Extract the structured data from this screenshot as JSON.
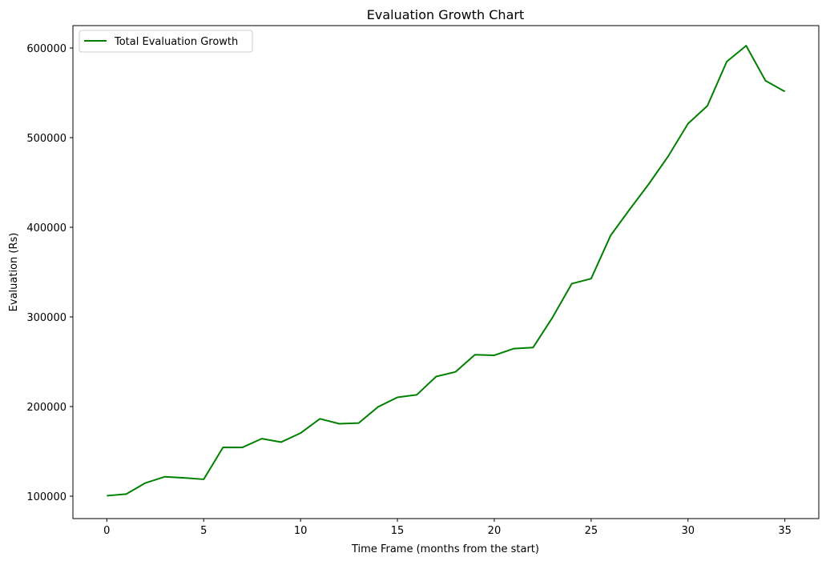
{
  "chart_data": {
    "type": "line",
    "title": "Evaluation Growth Chart",
    "xlabel": "Time Frame (months from the start)",
    "ylabel": "Evaluation (Rs)",
    "xlim": [
      -1.75,
      36.75
    ],
    "ylim": [
      75000,
      625000
    ],
    "xticks": [
      0,
      5,
      10,
      15,
      20,
      25,
      30,
      35
    ],
    "yticks": [
      100000,
      200000,
      300000,
      400000,
      500000,
      600000
    ],
    "grid": false,
    "legend_position": "upper-left",
    "series": [
      {
        "name": "Total Evaluation Growth",
        "color": "#008000",
        "x": [
          0,
          1,
          2,
          3,
          4,
          5,
          6,
          7,
          8,
          9,
          10,
          11,
          12,
          13,
          14,
          15,
          16,
          17,
          18,
          19,
          20,
          21,
          22,
          23,
          24,
          25,
          26,
          27,
          28,
          29,
          30,
          31,
          32,
          33,
          34,
          35
        ],
        "values": [
          100500,
          102300,
          114800,
          121700,
          120400,
          118800,
          154500,
          154400,
          164200,
          160300,
          170400,
          186300,
          180800,
          181600,
          199600,
          210300,
          213100,
          233500,
          238700,
          257800,
          257200,
          264600,
          265800,
          299200,
          337100,
          342700,
          390700,
          420300,
          449000,
          480000,
          515600,
          535500,
          584800,
          602600,
          563500,
          551400
        ]
      }
    ]
  }
}
